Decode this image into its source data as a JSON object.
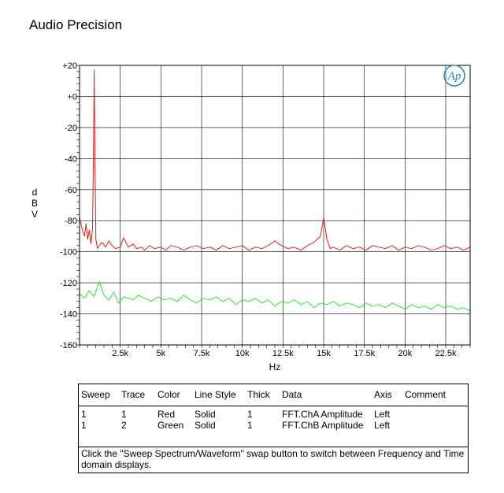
{
  "title": "Audio Precision",
  "logo_text": "Ap",
  "chart_data": {
    "type": "line",
    "xlabel": "Hz",
    "ylabel": "dBV",
    "xlim": [
      0,
      24000
    ],
    "ylim": [
      -160,
      20
    ],
    "xticks": [
      2500,
      5000,
      7500,
      10000,
      12500,
      15000,
      17500,
      20000,
      22500
    ],
    "xtick_labels": [
      "2.5k",
      "5k",
      "7.5k",
      "10k",
      "12.5k",
      "15k",
      "17.5k",
      "20k",
      "22.5k"
    ],
    "yticks": [
      20,
      0,
      -20,
      -40,
      -60,
      -80,
      -100,
      -120,
      -140,
      -160
    ],
    "ytick_labels": [
      "+20",
      "+0",
      "-20",
      "-40",
      "-60",
      "-80",
      "-100",
      "-120",
      "-140",
      "-160"
    ],
    "grid": true,
    "series": [
      {
        "color": "#e02020",
        "x": [
          0,
          150,
          300,
          400,
          500,
          600,
          700,
          800,
          850,
          900,
          950,
          1000,
          1100,
          1200,
          1400,
          1600,
          1800,
          2000,
          2200,
          2500,
          2700,
          3000,
          3300,
          3500,
          3800,
          4000,
          4300,
          4600,
          5000,
          5300,
          5600,
          6000,
          6400,
          6800,
          7200,
          7600,
          8000,
          8400,
          8800,
          9200,
          9600,
          10000,
          10400,
          10800,
          11200,
          11600,
          12000,
          12400,
          12800,
          13200,
          13600,
          14000,
          14400,
          14800,
          15000,
          15200,
          15400,
          15600,
          16000,
          16400,
          16800,
          17200,
          17600,
          18000,
          18400,
          18800,
          19200,
          19600,
          20000,
          20400,
          20800,
          21200,
          21600,
          22000,
          22400,
          22800,
          23200,
          23600,
          24000
        ],
        "y": [
          -78,
          -85,
          -90,
          -82,
          -92,
          -86,
          -95,
          -85,
          -40,
          17,
          -40,
          -92,
          -98,
          -96,
          -94,
          -97,
          -93,
          -96,
          -98,
          -97,
          -91,
          -97,
          -95,
          -98,
          -97,
          -99,
          -96,
          -98,
          -97,
          -99,
          -96,
          -97,
          -99,
          -97,
          -96,
          -98,
          -97,
          -99,
          -96,
          -98,
          -97,
          -96,
          -99,
          -97,
          -98,
          -96,
          -93,
          -96,
          -98,
          -97,
          -99,
          -96,
          -94,
          -90,
          -78,
          -92,
          -98,
          -97,
          -99,
          -96,
          -98,
          -97,
          -99,
          -96,
          -97,
          -98,
          -96,
          -99,
          -97,
          -98,
          -96,
          -97,
          -99,
          -98,
          -96,
          -98,
          -97,
          -99,
          -97
        ]
      },
      {
        "color": "#33e033",
        "x": [
          0,
          300,
          600,
          900,
          1200,
          1500,
          1800,
          2100,
          2400,
          2700,
          3000,
          3300,
          3600,
          4000,
          4400,
          4800,
          5200,
          5600,
          6000,
          6400,
          6800,
          7200,
          7600,
          8000,
          8400,
          8800,
          9200,
          9600,
          10000,
          10400,
          10800,
          11200,
          11600,
          12000,
          12400,
          12800,
          13200,
          13600,
          14000,
          14400,
          14800,
          15200,
          15600,
          16000,
          16400,
          16800,
          17200,
          17600,
          18000,
          18400,
          18800,
          19200,
          19600,
          20000,
          20400,
          20800,
          21200,
          21600,
          22000,
          22400,
          22800,
          23200,
          23600,
          24000
        ],
        "y": [
          -127,
          -130,
          -125,
          -129,
          -119,
          -128,
          -131,
          -126,
          -133,
          -129,
          -130,
          -131,
          -128,
          -130,
          -132,
          -129,
          -131,
          -130,
          -132,
          -128,
          -131,
          -133,
          -130,
          -131,
          -129,
          -132,
          -130,
          -134,
          -131,
          -132,
          -130,
          -133,
          -131,
          -135,
          -132,
          -133,
          -131,
          -134,
          -132,
          -136,
          -133,
          -134,
          -132,
          -135,
          -133,
          -134,
          -136,
          -133,
          -135,
          -134,
          -136,
          -133,
          -135,
          -137,
          -134,
          -136,
          -135,
          -137,
          -134,
          -136,
          -135,
          -137,
          -136,
          -138
        ]
      }
    ]
  },
  "legend_table": {
    "headers": [
      "Sweep",
      "Trace",
      "Color",
      "Line Style",
      "Thick",
      "Data",
      "Axis",
      "Comment"
    ],
    "rows": [
      [
        "1",
        "1",
        "Red",
        "Solid",
        "1",
        "FFT.ChA Amplitude",
        "Left",
        ""
      ],
      [
        "1",
        "2",
        "Green",
        "Solid",
        "1",
        "FFT.ChB Amplitude",
        "Left",
        ""
      ]
    ],
    "note": "Click the \"Sweep Spectrum/Waveform\" swap button to switch between Frequency and Time domain displays."
  }
}
